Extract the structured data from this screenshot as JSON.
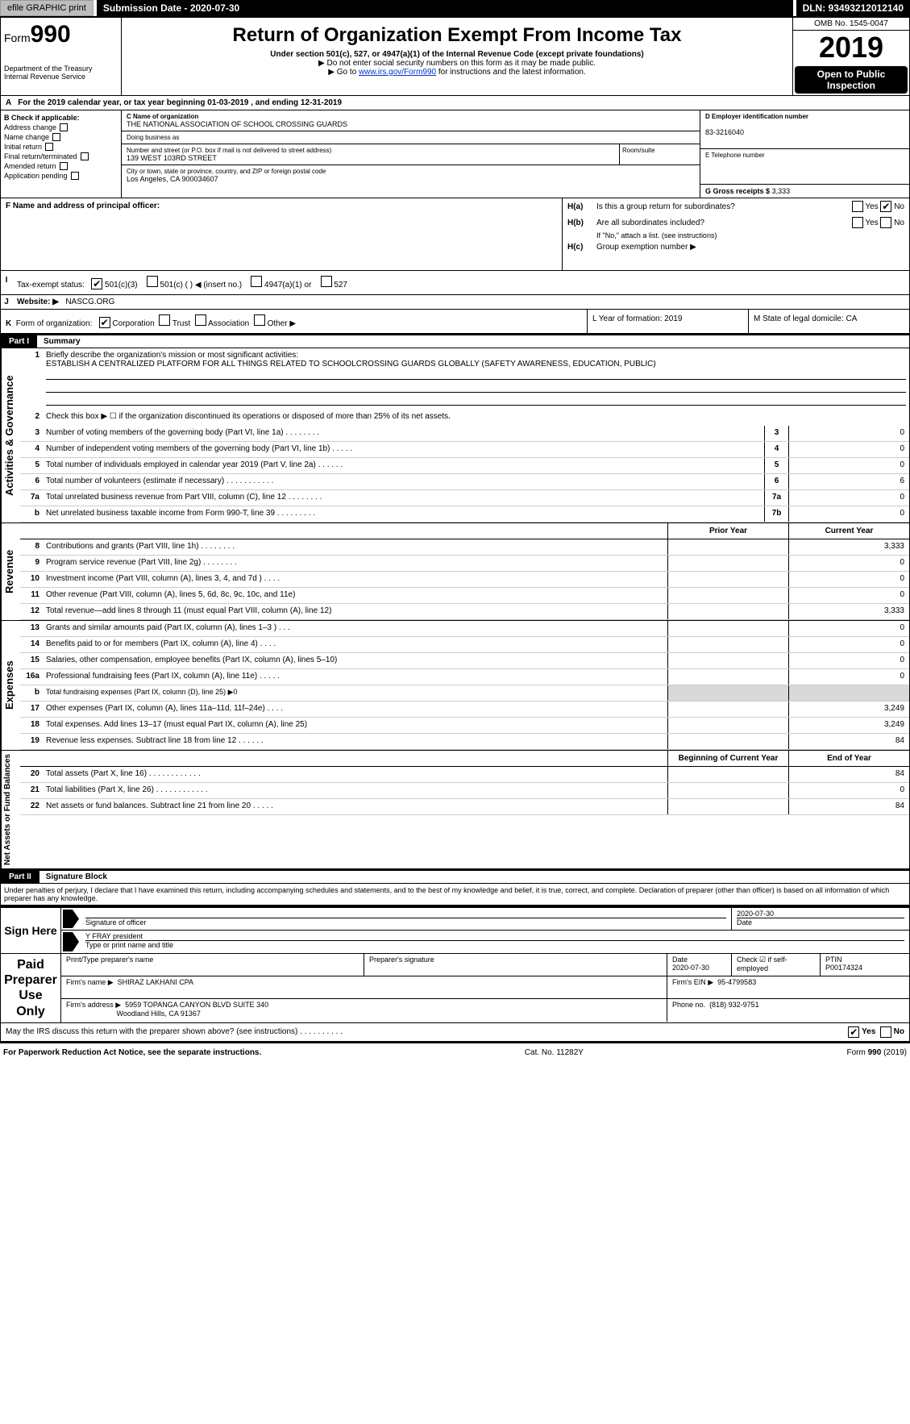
{
  "colors": {
    "black": "#000000",
    "white": "#ffffff",
    "link": "#0033cc",
    "shade": "#d9d9d9",
    "btn_gray": "#bdbdbd"
  },
  "topbar": {
    "efile_btn": "efile GRAPHIC print",
    "submission": "Submission Date - 2020-07-30",
    "dln": "DLN: 93493212012140"
  },
  "header": {
    "form_prefix": "Form",
    "form_num": "990",
    "dept": "Department of the Treasury",
    "irs": "Internal Revenue Service",
    "title": "Return of Organization Exempt From Income Tax",
    "subtitle": "Under section 501(c), 527, or 4947(a)(1) of the Internal Revenue Code (except private foundations)",
    "note1": "▶ Do not enter social security numbers on this form as it may be made public.",
    "note2_pre": "▶ Go to ",
    "note2_link": "www.irs.gov/Form990",
    "note2_post": " for instructions and the latest information.",
    "omb": "OMB No. 1545-0047",
    "year": "2019",
    "open_pub": "Open to Public Inspection"
  },
  "rowA": {
    "label": "A",
    "text_pre": "For the 2019 calendar year, or tax year beginning ",
    "begin": "01-03-2019",
    "mid": ", and ending ",
    "end": "12-31-2019"
  },
  "B": {
    "header": "B Check if applicable:",
    "items": [
      "Address change",
      "Name change",
      "Initial return",
      "Final return/terminated",
      "Amended return",
      "Application pending"
    ]
  },
  "C": {
    "name_lbl": "C Name of organization",
    "name": "THE NATIONAL ASSOCIATION OF SCHOOL CROSSING GUARDS",
    "dba_lbl": "Doing business as",
    "dba": "",
    "street_lbl": "Number and street (or P.O. box if mail is not delivered to street address)",
    "street": "139 WEST 103RD STREET",
    "room_lbl": "Room/suite",
    "city_lbl": "City or town, state or province, country, and ZIP or foreign postal code",
    "city": "Los Angeles, CA  900034607"
  },
  "D": {
    "lbl": "D Employer identification number",
    "val": "83-3216040"
  },
  "E": {
    "lbl": "E Telephone number",
    "val": ""
  },
  "G": {
    "lbl": "G Gross receipts $",
    "val": "3,333"
  },
  "F": {
    "lbl": "F  Name and address of principal officer:",
    "val": ""
  },
  "H": {
    "a_lbl": "H(a)",
    "a_text": "Is this a group return for subordinates?",
    "b_lbl": "H(b)",
    "b_text": "Are all subordinates included?",
    "b_note": "If \"No,\" attach a list. (see instructions)",
    "c_lbl": "H(c)",
    "c_text": "Group exemption number ▶",
    "yes": "Yes",
    "no": "No"
  },
  "I": {
    "label": "I",
    "text": "Tax-exempt status:",
    "opts": [
      "501(c)(3)",
      "501(c) (  ) ◀ (insert no.)",
      "4947(a)(1) or",
      "527"
    ],
    "checked_index": 0
  },
  "J": {
    "label": "J",
    "text": "Website: ▶",
    "val": "NASCG.ORG"
  },
  "K": {
    "label": "K",
    "text": "Form of organization:",
    "opts": [
      "Corporation",
      "Trust",
      "Association",
      "Other ▶"
    ],
    "checked_index": 0
  },
  "L": {
    "text": "L Year of formation: 2019"
  },
  "M": {
    "text": "M State of legal domicile: CA"
  },
  "partI": {
    "badge": "Part I",
    "title": "Summary"
  },
  "summary": {
    "q1_lbl": "1",
    "q1_text": "Briefly describe the organization's mission or most significant activities:",
    "q1_val": "ESTABLISH A CENTRALIZED PLATFORM FOR ALL THINGS RELATED TO SCHOOLCROSSING GUARDS GLOBALLY (SAFETY AWARENESS, EDUCATION, PUBLIC)",
    "q2_lbl": "2",
    "q2_text": "Check this box ▶ ☐ if the organization discontinued its operations or disposed of more than 25% of its net assets.",
    "rows_single": [
      {
        "n": "3",
        "t": "Number of voting members of the governing body (Part VI, line 1a)  .    .    .    .    .    .    .    .",
        "k": "3",
        "v": "0"
      },
      {
        "n": "4",
        "t": "Number of independent voting members of the governing body (Part VI, line 1b)  .    .    .    .    .",
        "k": "4",
        "v": "0"
      },
      {
        "n": "5",
        "t": "Total number of individuals employed in calendar year 2019 (Part V, line 2a)  .    .    .    .    .    .",
        "k": "5",
        "v": "0"
      },
      {
        "n": "6",
        "t": "Total number of volunteers (estimate if necessary)  .    .    .    .    .    .    .    .    .    .    .",
        "k": "6",
        "v": "6"
      },
      {
        "n": "7a",
        "t": "Total unrelated business revenue from Part VIII, column (C), line 12  .    .    .    .    .    .    .    .",
        "k": "7a",
        "v": "0"
      },
      {
        "n": "b",
        "t": "Net unrelated business taxable income from Form 990-T, line 39  .    .    .    .    .    .    .    .    .",
        "k": "7b",
        "v": "0"
      }
    ],
    "col_prior": "Prior Year",
    "col_current": "Current Year",
    "revenue_rows": [
      {
        "n": "8",
        "t": "Contributions and grants (Part VIII, line 1h)  .    .    .    .    .    .    .    .",
        "p": "",
        "c": "3,333"
      },
      {
        "n": "9",
        "t": "Program service revenue (Part VIII, line 2g)  .    .    .    .    .    .    .    .",
        "p": "",
        "c": "0"
      },
      {
        "n": "10",
        "t": "Investment income (Part VIII, column (A), lines 3, 4, and 7d )  .    .    .    .",
        "p": "",
        "c": "0"
      },
      {
        "n": "11",
        "t": "Other revenue (Part VIII, column (A), lines 5, 6d, 8c, 9c, 10c, and 11e)",
        "p": "",
        "c": "0"
      },
      {
        "n": "12",
        "t": "Total revenue—add lines 8 through 11 (must equal Part VIII, column (A), line 12)",
        "p": "",
        "c": "3,333"
      }
    ],
    "expense_rows": [
      {
        "n": "13",
        "t": "Grants and similar amounts paid (Part IX, column (A), lines 1–3 )  .    .    .",
        "p": "",
        "c": "0"
      },
      {
        "n": "14",
        "t": "Benefits paid to or for members (Part IX, column (A), line 4)  .    .    .    .",
        "p": "",
        "c": "0"
      },
      {
        "n": "15",
        "t": "Salaries, other compensation, employee benefits (Part IX, column (A), lines 5–10)",
        "p": "",
        "c": "0"
      },
      {
        "n": "16a",
        "t": "Professional fundraising fees (Part IX, column (A), line 11e)  .    .    .    .    .",
        "p": "",
        "c": "0"
      },
      {
        "n": "b",
        "t": "Total fundraising expenses (Part IX, column (D), line 25) ▶0",
        "p": null,
        "c": null,
        "shade": true
      },
      {
        "n": "17",
        "t": "Other expenses (Part IX, column (A), lines 11a–11d, 11f–24e)  .    .    .    .",
        "p": "",
        "c": "3,249"
      },
      {
        "n": "18",
        "t": "Total expenses. Add lines 13–17 (must equal Part IX, column (A), line 25)",
        "p": "",
        "c": "3,249"
      },
      {
        "n": "19",
        "t": "Revenue less expenses. Subtract line 18 from line 12  .    .    .    .    .    .",
        "p": "",
        "c": "84"
      }
    ],
    "col_begin": "Beginning of Current Year",
    "col_end": "End of Year",
    "net_rows": [
      {
        "n": "20",
        "t": "Total assets (Part X, line 16)  .    .    .    .    .    .    .    .    .    .    .    .",
        "p": "",
        "c": "84"
      },
      {
        "n": "21",
        "t": "Total liabilities (Part X, line 26)  .    .    .    .    .    .    .    .    .    .    .    .",
        "p": "",
        "c": "0"
      },
      {
        "n": "22",
        "t": "Net assets or fund balances. Subtract line 21 from line 20  .    .    .    .    .",
        "p": "",
        "c": "84"
      }
    ]
  },
  "vtabs": {
    "gov": "Activities & Governance",
    "rev": "Revenue",
    "exp": "Expenses",
    "net": "Net Assets or Fund Balances"
  },
  "partII": {
    "badge": "Part II",
    "title": "Signature Block"
  },
  "penalty": "Under penalties of perjury, I declare that I have examined this return, including accompanying schedules and statements, and to the best of my knowledge and belief, it is true, correct, and complete. Declaration of preparer (other than officer) is based on all information of which preparer has any knowledge.",
  "sign": {
    "label": "Sign Here",
    "sig_lbl": "Signature of officer",
    "date_lbl": "Date",
    "date": "2020-07-30",
    "name": "Y FRAY  president",
    "name_lbl": "Type or print name and title"
  },
  "paid": {
    "label": "Paid Preparer Use Only",
    "h1": "Print/Type preparer's name",
    "h2": "Preparer's signature",
    "h3": "Date",
    "h4": "Check ☑ if self-employed",
    "h5": "PTIN",
    "date": "2020-07-30",
    "ptin": "P00174324",
    "firm_name_lbl": "Firm's name    ▶",
    "firm_name": "SHIRAZ LAKHANI CPA",
    "ein_lbl": "Firm's EIN ▶",
    "ein": "95-4799583",
    "addr_lbl": "Firm's address ▶",
    "addr1": "5959 TOPANGA CANYON BLVD SUITE 340",
    "addr2": "Woodland Hills, CA  91367",
    "phone_lbl": "Phone no.",
    "phone": "(818) 932-9751"
  },
  "discuss": {
    "text": "May the IRS discuss this return with the preparer shown above? (see instructions)  .    .    .    .    .    .    .    .    .    .",
    "yes": "Yes",
    "no": "No"
  },
  "footer": {
    "left": "For Paperwork Reduction Act Notice, see the separate instructions.",
    "mid": "Cat. No. 11282Y",
    "right_pre": "Form ",
    "right_bold": "990",
    "right_post": " (2019)"
  }
}
